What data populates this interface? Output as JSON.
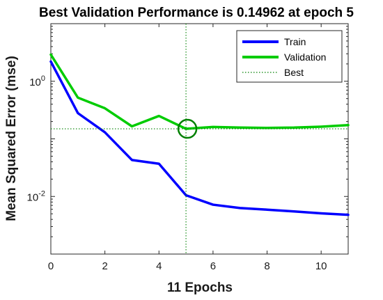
{
  "chart_data": {
    "type": "line",
    "title": "Best Validation Performance is 0.14962 at epoch 5",
    "xlabel": "11 Epochs",
    "ylabel": "Mean Squared Error  (mse)",
    "xlim": [
      0,
      11
    ],
    "ylim": [
      0.001,
      10
    ],
    "yscale": "log",
    "grid": false,
    "legend_position": "top-right",
    "x_ticks": [
      0,
      2,
      4,
      6,
      8,
      10
    ],
    "x_tick_labels": [
      "0",
      "2",
      "4",
      "6",
      "8",
      "10"
    ],
    "y_ticks": [
      1,
      0.01
    ],
    "y_tick_labels": [
      {
        "base": "10",
        "exp": "0"
      },
      {
        "base": "10",
        "exp": "-2"
      }
    ],
    "x": [
      0,
      1,
      2,
      3,
      4,
      5,
      6,
      7,
      8,
      9,
      10,
      11
    ],
    "series": [
      {
        "name": "Train",
        "color": "#0000ff",
        "values": [
          2.2,
          0.28,
          0.13,
          0.043,
          0.037,
          0.0105,
          0.0072,
          0.0063,
          0.0059,
          0.0055,
          0.0051,
          0.0048
        ]
      },
      {
        "name": "Validation",
        "color": "#00cc00",
        "values": [
          2.9,
          0.52,
          0.34,
          0.165,
          0.25,
          0.14962,
          0.161,
          0.157,
          0.155,
          0.157,
          0.163,
          0.173
        ]
      }
    ],
    "best": {
      "name": "Best",
      "color": "#008000",
      "epoch": 5,
      "value": 0.14962
    }
  }
}
